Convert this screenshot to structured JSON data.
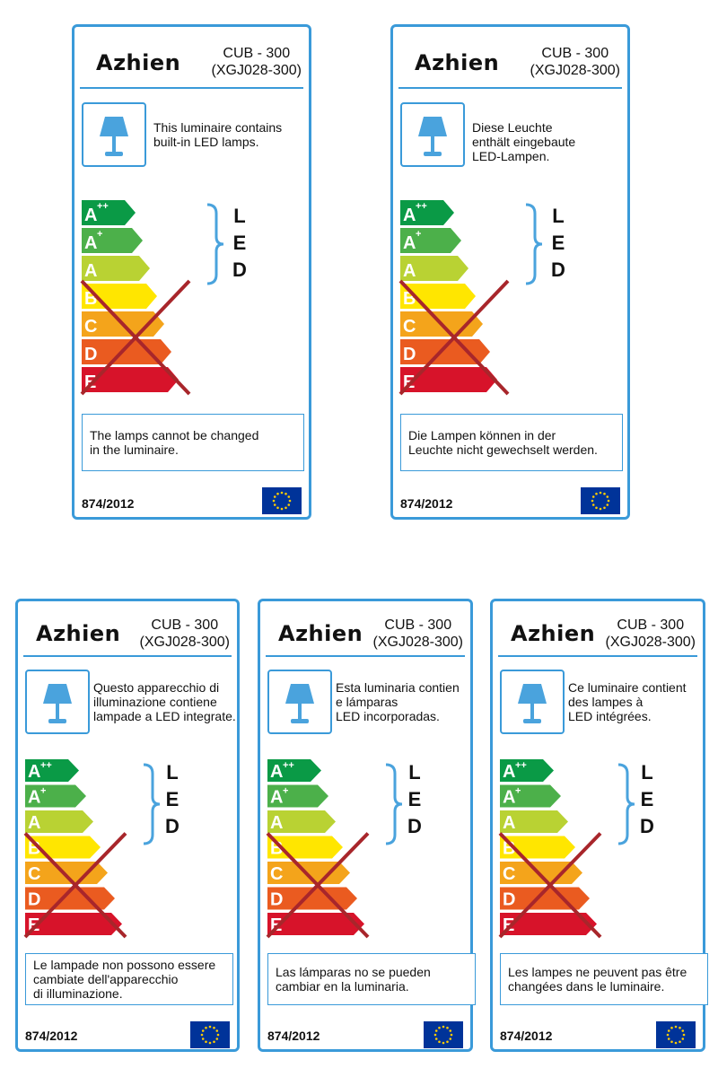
{
  "brand": "Azhien",
  "model_line1": "CUB - 300",
  "model_line2": "(XGJ028-300)",
  "regulation": "874/2012",
  "icon_names": {
    "lamp": "table-lamp-icon",
    "bracket": "curly-brace-icon",
    "flag": "eu-flag-icon"
  },
  "colors": {
    "border": "#3a9ad9",
    "class_app": "#0a9a46",
    "class_ap": "#4cb04a",
    "class_a": "#b9d233",
    "class_b": "#ffe600",
    "class_c": "#f4a41b",
    "class_d": "#ea5b20",
    "class_e": "#d7132a",
    "cross": "#a8262b",
    "eu_blue": "#003399",
    "eu_star": "#ffcc00"
  },
  "energy_scale": {
    "classes": [
      "A",
      "A",
      "A",
      "B",
      "C",
      "D",
      "E"
    ],
    "superscripts": [
      "++",
      "+",
      "",
      "",
      "",
      "",
      ""
    ],
    "included_range": "A++ to A",
    "excluded_range": "B to E (crossed out)"
  },
  "led_letters": [
    "L",
    "E",
    "D"
  ],
  "labels": [
    {
      "language": "en",
      "description": [
        "This luminaire contains",
        "built-in LED lamps."
      ],
      "note": [
        "The lamps cannot be changed",
        "in the luminaire."
      ]
    },
    {
      "language": "de",
      "description": [
        "Diese Leuchte",
        "enthält eingebaute",
        "LED-Lampen."
      ],
      "note": [
        "Die Lampen können in der",
        "Leuchte nicht gewechselt werden."
      ]
    },
    {
      "language": "it",
      "description": [
        "Questo apparecchio di",
        "illuminazione contiene",
        "lampade a LED integrate."
      ],
      "note": [
        "Le lampade non possono essere",
        "cambiate dell'apparecchio",
        "di illuminazione."
      ]
    },
    {
      "language": "es",
      "description": [
        "Esta luminaria contien",
        "e lámparas",
        "LED incorporadas."
      ],
      "note": [
        "Las lámparas no se pueden",
        "cambiar en la luminaria."
      ]
    },
    {
      "language": "fr",
      "description": [
        "Ce luminaire contient",
        "des lampes à",
        "LED intégrées."
      ],
      "note": [
        "Les lampes ne peuvent pas être",
        "changées dans le luminaire."
      ]
    }
  ]
}
